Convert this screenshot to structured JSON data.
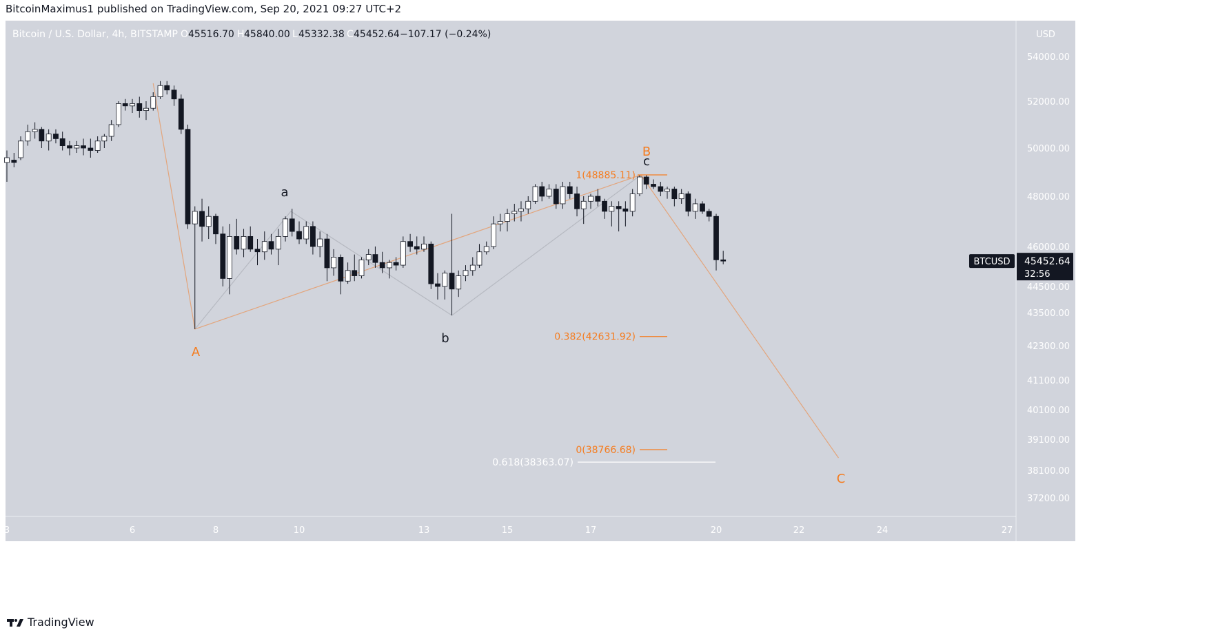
{
  "header": {
    "published_line": "BitcoinMaximus1 published on TradingView.com, Sep 20, 2021 09:27 UTC+2"
  },
  "legend": {
    "symbol": "Bitcoin / U.S. Dollar, 4h, BITSTAMP",
    "o_label": "O",
    "o_value": "45516.70",
    "h_label": "H",
    "h_value": "45840.00",
    "l_label": "L",
    "l_value": "45332.38",
    "c_label": "C",
    "c_value": "45452.64",
    "change": "−107.17 (−0.24%)"
  },
  "price_axis": {
    "currency": "USD",
    "ticks": [
      "54000.00",
      "52000.00",
      "50000.00",
      "48000.00",
      "46000.00",
      "44500.00",
      "43500.00",
      "42300.00",
      "41100.00",
      "40100.00",
      "39100.00",
      "38100.00",
      "37200.00"
    ]
  },
  "time_axis": {
    "ticks": [
      "3",
      "6",
      "8",
      "10",
      "13",
      "15",
      "17",
      "20",
      "22",
      "24",
      "27"
    ]
  },
  "price_badge": {
    "symbol": "BTCUSD",
    "price": "45452.64",
    "countdown": "32:56"
  },
  "wave_labels": {
    "A": "A",
    "B": "B",
    "C": "C",
    "a": "a",
    "b": "b",
    "c": "c"
  },
  "fib_labels": {
    "one": "1(48885.11)",
    "f0382": "0.382(42631.92)",
    "zero": "0(38766.68)",
    "f0618": "0.618(38363.07)"
  },
  "footer": {
    "brand": "TradingView"
  },
  "colors": {
    "background": "#d1d4dc",
    "orange": "#f57c1f",
    "orange_line": "#e3a57c",
    "gray_line": "#b6b9c1",
    "candle_dark": "#131722",
    "candle_light": "#ffffff",
    "axis_text": "#ffffff",
    "badge": "#131722"
  },
  "chart_data": {
    "type": "candlestick",
    "symbol": "Bitcoin / U.S. Dollar, 4h, BITSTAMP",
    "timeframe": "4h",
    "x_axis_ticks": [
      "3",
      "6",
      "8",
      "10",
      "13",
      "15",
      "17",
      "20",
      "22",
      "24",
      "27"
    ],
    "y_axis_ticks": [
      54000,
      52000,
      50000,
      48000,
      46000,
      44500,
      43500,
      42300,
      41100,
      40100,
      39100,
      38100,
      37200
    ],
    "last_price": 45452.64,
    "candles": [
      {
        "d": 3.0,
        "o": 49400,
        "h": 49900,
        "l": 48600,
        "c": 49600
      },
      {
        "d": 3.17,
        "o": 49500,
        "h": 49800,
        "l": 49200,
        "c": 49400
      },
      {
        "d": 3.33,
        "o": 49600,
        "h": 50500,
        "l": 49500,
        "c": 50300
      },
      {
        "d": 3.5,
        "o": 50300,
        "h": 51000,
        "l": 50100,
        "c": 50700
      },
      {
        "d": 3.67,
        "o": 50700,
        "h": 51100,
        "l": 50400,
        "c": 50800
      },
      {
        "d": 3.83,
        "o": 50800,
        "h": 50900,
        "l": 50000,
        "c": 50300
      },
      {
        "d": 4.0,
        "o": 50300,
        "h": 50800,
        "l": 49900,
        "c": 50600
      },
      {
        "d": 4.17,
        "o": 50600,
        "h": 50800,
        "l": 50200,
        "c": 50400
      },
      {
        "d": 4.33,
        "o": 50400,
        "h": 50700,
        "l": 49900,
        "c": 50100
      },
      {
        "d": 4.5,
        "o": 50100,
        "h": 50300,
        "l": 49700,
        "c": 50000
      },
      {
        "d": 4.67,
        "o": 50000,
        "h": 50300,
        "l": 49800,
        "c": 50100
      },
      {
        "d": 4.83,
        "o": 50100,
        "h": 50400,
        "l": 49700,
        "c": 50000
      },
      {
        "d": 5.0,
        "o": 50000,
        "h": 50400,
        "l": 49600,
        "c": 49900
      },
      {
        "d": 5.17,
        "o": 49900,
        "h": 50500,
        "l": 49800,
        "c": 50300
      },
      {
        "d": 5.33,
        "o": 50300,
        "h": 50600,
        "l": 50000,
        "c": 50500
      },
      {
        "d": 5.5,
        "o": 50500,
        "h": 51200,
        "l": 50300,
        "c": 51000
      },
      {
        "d": 5.67,
        "o": 51000,
        "h": 52000,
        "l": 50900,
        "c": 51900
      },
      {
        "d": 5.83,
        "o": 51900,
        "h": 52100,
        "l": 51600,
        "c": 51800
      },
      {
        "d": 6.0,
        "o": 51800,
        "h": 52100,
        "l": 51500,
        "c": 51900
      },
      {
        "d": 6.17,
        "o": 51900,
        "h": 52200,
        "l": 51300,
        "c": 51600
      },
      {
        "d": 6.33,
        "o": 51600,
        "h": 52000,
        "l": 51200,
        "c": 51700
      },
      {
        "d": 6.5,
        "o": 51700,
        "h": 52400,
        "l": 51600,
        "c": 52200
      },
      {
        "d": 6.67,
        "o": 52200,
        "h": 52900,
        "l": 52100,
        "c": 52700
      },
      {
        "d": 6.83,
        "o": 52700,
        "h": 52900,
        "l": 52300,
        "c": 52500
      },
      {
        "d": 7.0,
        "o": 52500,
        "h": 52700,
        "l": 51800,
        "c": 52100
      },
      {
        "d": 7.17,
        "o": 52100,
        "h": 52300,
        "l": 50600,
        "c": 50800
      },
      {
        "d": 7.33,
        "o": 50800,
        "h": 51000,
        "l": 46700,
        "c": 46900
      },
      {
        "d": 7.5,
        "o": 46900,
        "h": 47600,
        "l": 42900,
        "c": 47400
      },
      {
        "d": 7.67,
        "o": 47400,
        "h": 47900,
        "l": 46200,
        "c": 46800
      },
      {
        "d": 7.83,
        "o": 46800,
        "h": 47600,
        "l": 46300,
        "c": 47200
      },
      {
        "d": 8.0,
        "o": 47200,
        "h": 47300,
        "l": 46100,
        "c": 46500
      },
      {
        "d": 8.17,
        "o": 46500,
        "h": 46800,
        "l": 44500,
        "c": 44800
      },
      {
        "d": 8.33,
        "o": 44800,
        "h": 46900,
        "l": 44200,
        "c": 46400
      },
      {
        "d": 8.5,
        "o": 46400,
        "h": 47100,
        "l": 45700,
        "c": 45900
      },
      {
        "d": 8.67,
        "o": 45900,
        "h": 46700,
        "l": 45600,
        "c": 46400
      },
      {
        "d": 8.83,
        "o": 46400,
        "h": 46800,
        "l": 45800,
        "c": 45900
      },
      {
        "d": 9.0,
        "o": 45900,
        "h": 46300,
        "l": 45300,
        "c": 45800
      },
      {
        "d": 9.17,
        "o": 45800,
        "h": 46600,
        "l": 45500,
        "c": 46200
      },
      {
        "d": 9.33,
        "o": 46200,
        "h": 46500,
        "l": 45700,
        "c": 45900
      },
      {
        "d": 9.5,
        "o": 45900,
        "h": 46700,
        "l": 45300,
        "c": 46400
      },
      {
        "d": 9.67,
        "o": 46400,
        "h": 47200,
        "l": 46200,
        "c": 47100
      },
      {
        "d": 9.83,
        "o": 47100,
        "h": 47500,
        "l": 46400,
        "c": 46600
      },
      {
        "d": 10.0,
        "o": 46600,
        "h": 47000,
        "l": 46100,
        "c": 46300
      },
      {
        "d": 10.17,
        "o": 46300,
        "h": 47000,
        "l": 46100,
        "c": 46800
      },
      {
        "d": 10.33,
        "o": 46800,
        "h": 47000,
        "l": 45700,
        "c": 46000
      },
      {
        "d": 10.5,
        "o": 46000,
        "h": 46600,
        "l": 45600,
        "c": 46300
      },
      {
        "d": 10.67,
        "o": 46300,
        "h": 46500,
        "l": 44700,
        "c": 45200
      },
      {
        "d": 10.83,
        "o": 45200,
        "h": 45900,
        "l": 44900,
        "c": 45600
      },
      {
        "d": 11.0,
        "o": 45600,
        "h": 45700,
        "l": 44200,
        "c": 44700
      },
      {
        "d": 11.17,
        "o": 44700,
        "h": 45400,
        "l": 44600,
        "c": 45100
      },
      {
        "d": 11.33,
        "o": 45100,
        "h": 45700,
        "l": 44700,
        "c": 44900
      },
      {
        "d": 11.5,
        "o": 44900,
        "h": 45600,
        "l": 44800,
        "c": 45500
      },
      {
        "d": 11.67,
        "o": 45500,
        "h": 45900,
        "l": 45300,
        "c": 45700
      },
      {
        "d": 11.83,
        "o": 45700,
        "h": 46000,
        "l": 45200,
        "c": 45400
      },
      {
        "d": 12.0,
        "o": 45400,
        "h": 45800,
        "l": 45000,
        "c": 45200
      },
      {
        "d": 12.17,
        "o": 45200,
        "h": 45500,
        "l": 44800,
        "c": 45400
      },
      {
        "d": 12.33,
        "o": 45400,
        "h": 45600,
        "l": 45100,
        "c": 45300
      },
      {
        "d": 12.5,
        "o": 45300,
        "h": 46400,
        "l": 45200,
        "c": 46200
      },
      {
        "d": 12.67,
        "o": 46200,
        "h": 46500,
        "l": 45800,
        "c": 46000
      },
      {
        "d": 12.83,
        "o": 46000,
        "h": 46400,
        "l": 45700,
        "c": 45900
      },
      {
        "d": 13.0,
        "o": 45900,
        "h": 46400,
        "l": 45800,
        "c": 46100
      },
      {
        "d": 13.17,
        "o": 46100,
        "h": 46200,
        "l": 44400,
        "c": 44600
      },
      {
        "d": 13.33,
        "o": 44600,
        "h": 45000,
        "l": 44000,
        "c": 44500
      },
      {
        "d": 13.5,
        "o": 44500,
        "h": 45100,
        "l": 44000,
        "c": 45000
      },
      {
        "d": 13.67,
        "o": 45000,
        "h": 47300,
        "l": 43400,
        "c": 44400
      },
      {
        "d": 13.83,
        "o": 44400,
        "h": 45100,
        "l": 44100,
        "c": 44900
      },
      {
        "d": 14.0,
        "o": 44900,
        "h": 45300,
        "l": 44700,
        "c": 45100
      },
      {
        "d": 14.17,
        "o": 45100,
        "h": 45600,
        "l": 44900,
        "c": 45300
      },
      {
        "d": 14.33,
        "o": 45300,
        "h": 46100,
        "l": 45200,
        "c": 45800
      },
      {
        "d": 14.5,
        "o": 45800,
        "h": 46200,
        "l": 45700,
        "c": 46000
      },
      {
        "d": 14.67,
        "o": 46000,
        "h": 47200,
        "l": 45900,
        "c": 46900
      },
      {
        "d": 14.83,
        "o": 46900,
        "h": 47300,
        "l": 46600,
        "c": 47000
      },
      {
        "d": 15.0,
        "o": 47000,
        "h": 47500,
        "l": 46600,
        "c": 47300
      },
      {
        "d": 15.17,
        "o": 47300,
        "h": 47700,
        "l": 47000,
        "c": 47400
      },
      {
        "d": 15.33,
        "o": 47400,
        "h": 47800,
        "l": 47000,
        "c": 47500
      },
      {
        "d": 15.5,
        "o": 47500,
        "h": 48000,
        "l": 47300,
        "c": 47800
      },
      {
        "d": 15.67,
        "o": 47800,
        "h": 48500,
        "l": 47700,
        "c": 48400
      },
      {
        "d": 15.83,
        "o": 48400,
        "h": 48600,
        "l": 47800,
        "c": 48000
      },
      {
        "d": 16.0,
        "o": 48000,
        "h": 48500,
        "l": 47900,
        "c": 48300
      },
      {
        "d": 16.17,
        "o": 48300,
        "h": 48500,
        "l": 47500,
        "c": 47700
      },
      {
        "d": 16.33,
        "o": 47700,
        "h": 48600,
        "l": 47500,
        "c": 48400
      },
      {
        "d": 16.5,
        "o": 48400,
        "h": 48600,
        "l": 47900,
        "c": 48100
      },
      {
        "d": 16.67,
        "o": 48100,
        "h": 48400,
        "l": 47200,
        "c": 47500
      },
      {
        "d": 16.83,
        "o": 47500,
        "h": 48000,
        "l": 46900,
        "c": 47800
      },
      {
        "d": 17.0,
        "o": 47800,
        "h": 48100,
        "l": 47500,
        "c": 48000
      },
      {
        "d": 17.17,
        "o": 48000,
        "h": 48300,
        "l": 47600,
        "c": 47800
      },
      {
        "d": 17.33,
        "o": 47800,
        "h": 47900,
        "l": 47100,
        "c": 47400
      },
      {
        "d": 17.5,
        "o": 47400,
        "h": 47800,
        "l": 46800,
        "c": 47600
      },
      {
        "d": 17.67,
        "o": 47600,
        "h": 47800,
        "l": 46600,
        "c": 47500
      },
      {
        "d": 17.83,
        "o": 47500,
        "h": 47800,
        "l": 46800,
        "c": 47400
      },
      {
        "d": 18.0,
        "o": 47400,
        "h": 48300,
        "l": 47200,
        "c": 48100
      },
      {
        "d": 18.17,
        "o": 48100,
        "h": 48900,
        "l": 48000,
        "c": 48800
      },
      {
        "d": 18.33,
        "o": 48800,
        "h": 48900,
        "l": 48300,
        "c": 48500
      },
      {
        "d": 18.5,
        "o": 48500,
        "h": 48700,
        "l": 48300,
        "c": 48400
      },
      {
        "d": 18.67,
        "o": 48400,
        "h": 48600,
        "l": 48000,
        "c": 48200
      },
      {
        "d": 18.83,
        "o": 48200,
        "h": 48400,
        "l": 47900,
        "c": 48300
      },
      {
        "d": 19.0,
        "o": 48300,
        "h": 48400,
        "l": 47600,
        "c": 47900
      },
      {
        "d": 19.17,
        "o": 47900,
        "h": 48300,
        "l": 47700,
        "c": 48100
      },
      {
        "d": 19.33,
        "o": 48100,
        "h": 48200,
        "l": 47200,
        "c": 47400
      },
      {
        "d": 19.5,
        "o": 47400,
        "h": 47900,
        "l": 47100,
        "c": 47700
      },
      {
        "d": 19.67,
        "o": 47700,
        "h": 47800,
        "l": 47300,
        "c": 47400
      },
      {
        "d": 19.83,
        "o": 47400,
        "h": 47500,
        "l": 47000,
        "c": 47200
      },
      {
        "d": 20.0,
        "o": 47200,
        "h": 47300,
        "l": 45100,
        "c": 45500
      },
      {
        "d": 20.17,
        "o": 45500,
        "h": 45840,
        "l": 45332.38,
        "c": 45452.64
      }
    ],
    "wave_points": {
      "ABC": [
        {
          "label": "start",
          "d": 6.5,
          "price": 52800
        },
        {
          "label": "A",
          "d": 7.5,
          "price": 42900
        },
        {
          "label": "B",
          "d": 18.2,
          "price": 48885.11
        },
        {
          "label": "C",
          "d": 22.95,
          "price": 38500
        }
      ],
      "abc": [
        {
          "label": "start",
          "d": 7.5,
          "price": 42900
        },
        {
          "label": "a",
          "d": 9.8,
          "price": 47400
        },
        {
          "label": "b",
          "d": 13.67,
          "price": 43400
        },
        {
          "label": "c",
          "d": 18.2,
          "price": 48885.11
        }
      ]
    },
    "fib_levels": [
      {
        "ratio": 1,
        "price": 48885.11
      },
      {
        "ratio": 0.382,
        "price": 42631.92
      },
      {
        "ratio": 0,
        "price": 38766.68
      },
      {
        "ratio": 0.618,
        "price": 38363.07
      }
    ]
  }
}
